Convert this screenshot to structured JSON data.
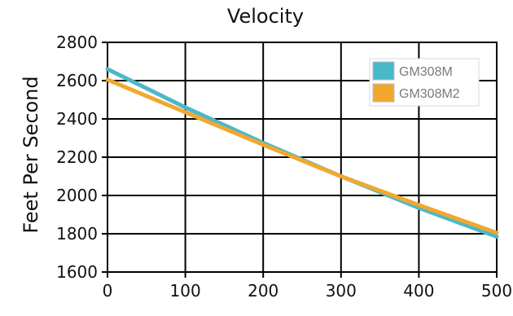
{
  "chart_data": {
    "type": "line",
    "title": "Velocity",
    "xlabel": "",
    "ylabel": "Feet Per Second",
    "xlim": [
      0,
      500
    ],
    "ylim": [
      1600,
      2800
    ],
    "x_ticks": [
      0,
      100,
      200,
      300,
      400,
      500
    ],
    "y_ticks": [
      1600,
      1800,
      2000,
      2200,
      2400,
      2600,
      2800
    ],
    "grid": true,
    "legend_position": "top-right",
    "series": [
      {
        "name": "GM308M",
        "color": "#4bb8c8",
        "x": [
          0,
          100,
          200,
          300,
          400,
          500
        ],
        "y": [
          2660,
          2460,
          2275,
          2100,
          1935,
          1785
        ]
      },
      {
        "name": "GM308M2",
        "color": "#f0a830",
        "x": [
          0,
          100,
          200,
          300,
          400,
          500
        ],
        "y": [
          2605,
          2435,
          2265,
          2100,
          1950,
          1805
        ]
      }
    ]
  }
}
